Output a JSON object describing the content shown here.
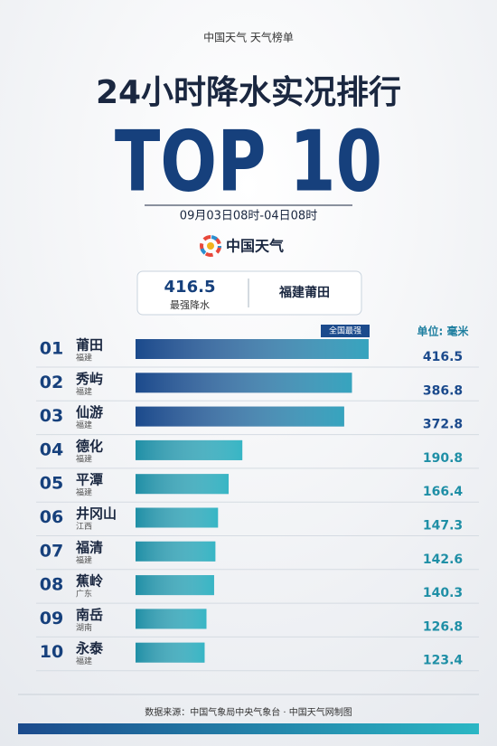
{
  "header": {
    "brand_line": "中国天气  天气榜单",
    "title": "24小时降水实况排行",
    "top": "TOP 10",
    "period": "09月03日08时-04日08时",
    "logo_text": "中国天气"
  },
  "highlight": {
    "value": 416.5,
    "label": "最强降水",
    "place": "福建莆田"
  },
  "chart_data": {
    "type": "bar",
    "badge": "全国最强",
    "unit": "单位: 毫米",
    "ranks": [
      "01",
      "02",
      "03",
      "04",
      "05",
      "06",
      "07",
      "08",
      "09",
      "10"
    ],
    "categories": [
      "莆田",
      "秀屿",
      "仙游",
      "德化",
      "平潭",
      "井冈山",
      "福清",
      "蕉岭",
      "南岳",
      "永泰"
    ],
    "provinces": [
      "福建",
      "福建",
      "福建",
      "福建",
      "福建",
      "江西",
      "福建",
      "广东",
      "湖南",
      "福建"
    ],
    "values": [
      416.5,
      386.8,
      372.8,
      190.8,
      166.4,
      147.3,
      142.6,
      140.3,
      126.8,
      123.4
    ],
    "colors": [
      "#1b4a8c",
      "#1b4a8c",
      "#1b4a8c",
      "#1f8fa6",
      "#1f8fa6",
      "#1f8fa6",
      "#1f8fa6",
      "#1f8fa6",
      "#1f8fa6",
      "#1f8fa6"
    ],
    "xlim": [
      0,
      420
    ]
  },
  "footer": {
    "source": "数据来源：中国气象局中央气象台  ·  中国天气网制图"
  }
}
